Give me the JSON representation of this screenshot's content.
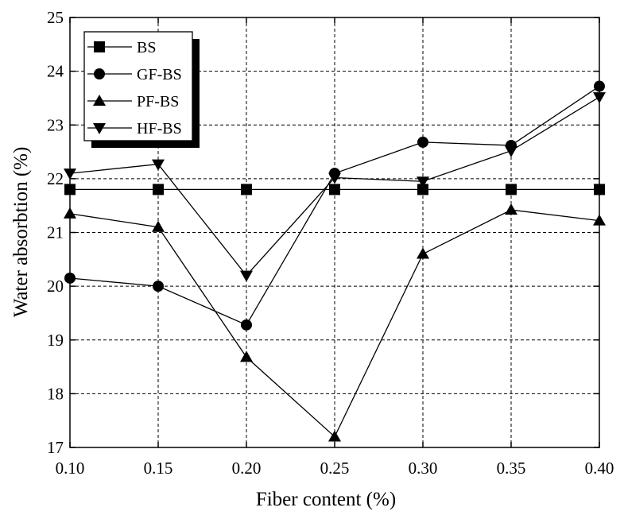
{
  "chart_data": {
    "type": "line",
    "title": "",
    "xlabel": "Fiber content (%)",
    "ylabel": "Water absorbtion (%)",
    "x": [
      0.1,
      0.15,
      0.2,
      0.25,
      0.3,
      0.35,
      0.4
    ],
    "x_tick_labels": [
      "0.10",
      "0.15",
      "0.20",
      "0.25",
      "0.30",
      "0.35",
      "0.40"
    ],
    "y_tick_labels": [
      "17",
      "18",
      "19",
      "20",
      "21",
      "22",
      "23",
      "24",
      "25"
    ],
    "xlim": [
      0.1,
      0.4
    ],
    "ylim": [
      17,
      25
    ],
    "grid": true,
    "legend_position": "top-left",
    "series": [
      {
        "name": "BS",
        "marker": "square",
        "values": [
          21.8,
          21.8,
          21.8,
          21.8,
          21.8,
          21.8,
          21.8
        ]
      },
      {
        "name": "GF-BS",
        "marker": "circle",
        "values": [
          20.15,
          20.0,
          19.28,
          22.1,
          22.68,
          22.62,
          23.72
        ]
      },
      {
        "name": "PF-BS",
        "marker": "triangle-up",
        "values": [
          21.35,
          21.1,
          18.68,
          17.2,
          20.6,
          21.42,
          21.22
        ]
      },
      {
        "name": "HF-BS",
        "marker": "triangle-down",
        "values": [
          22.1,
          22.27,
          20.2,
          22.02,
          21.95,
          22.52,
          23.52
        ]
      }
    ],
    "colors": {
      "line": "#000000",
      "marker": "#000000",
      "background": "#ffffff"
    }
  }
}
